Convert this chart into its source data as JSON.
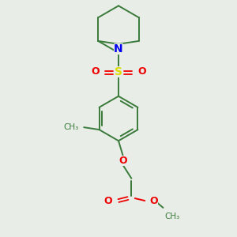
{
  "background_color": "#e8ede8",
  "bond_color": "#3a7a3a",
  "N_color": "#0000ee",
  "S_color": "#dddd00",
  "O_color": "#ee0000",
  "line_width": 1.4,
  "figsize": [
    3.0,
    3.0
  ],
  "dpi": 100,
  "xlim": [
    0,
    1
  ],
  "ylim": [
    0,
    1
  ]
}
